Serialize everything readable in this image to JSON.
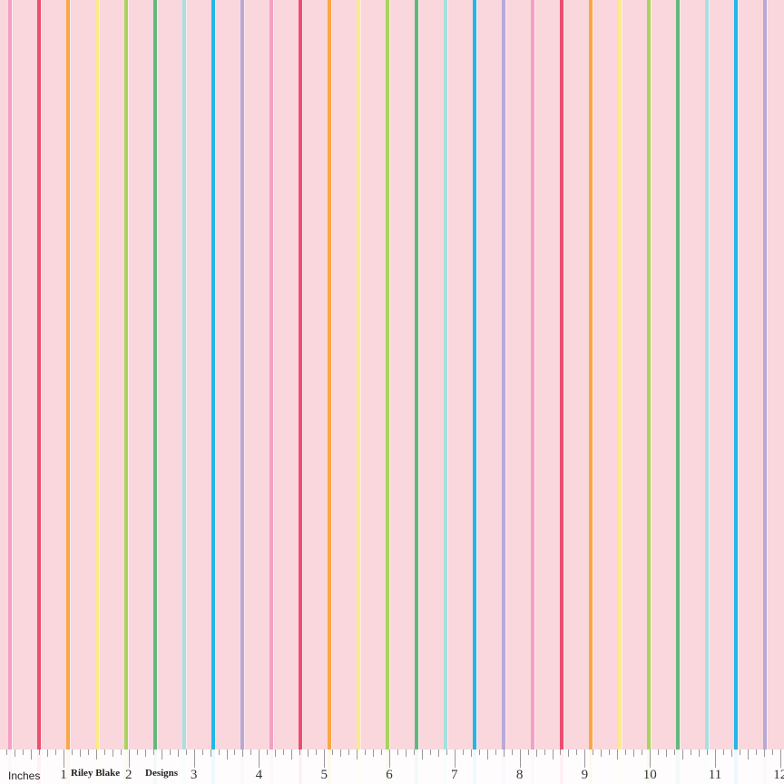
{
  "fabric": {
    "background_color": "#f9d7dc",
    "stripe_colors": [
      "#f59fc4",
      "#ee4d6e",
      "#fba744",
      "#fde98a",
      "#a8d45c",
      "#62b87c",
      "#a6e0e0",
      "#22b6ea",
      "#b8a8d8"
    ]
  },
  "ruler": {
    "units_label": "Inches",
    "numbers": [
      "1",
      "2",
      "3",
      "4",
      "5",
      "6",
      "7",
      "8",
      "9",
      "10",
      "11",
      "12"
    ],
    "brand_left": "Riley Blake",
    "brand_right": "Designs"
  }
}
